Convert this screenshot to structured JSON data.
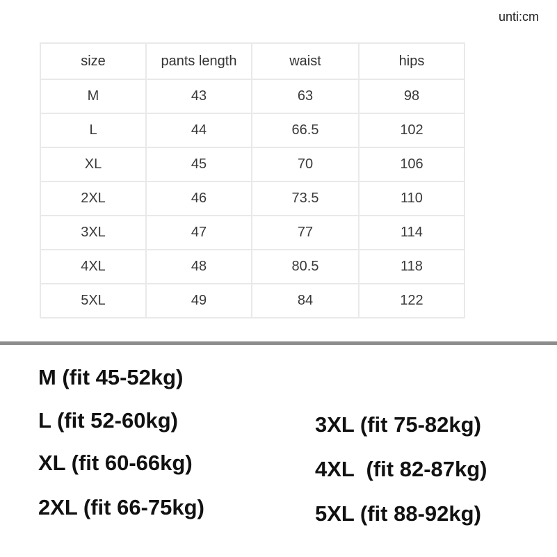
{
  "unit_label": "unti:cm",
  "table": {
    "headers": [
      "size",
      "pants length",
      "waist",
      "hips"
    ],
    "rows": [
      [
        "M",
        "43",
        "63",
        "98"
      ],
      [
        "L",
        "44",
        "66.5",
        "102"
      ],
      [
        "XL",
        "45",
        "70",
        "106"
      ],
      [
        "2XL",
        "46",
        "73.5",
        "110"
      ],
      [
        "3XL",
        "47",
        "77",
        "114"
      ],
      [
        "4XL",
        "48",
        "80.5",
        "118"
      ],
      [
        "5XL",
        "49",
        "84",
        "122"
      ]
    ]
  },
  "fit_left": [
    "M (fit 45-52kg)",
    "L (fit 52-60kg)",
    "XL (fit 60-66kg)",
    "2XL (fit 66-75kg)"
  ],
  "fit_right": [
    "3XL (fit 75-82kg)",
    "4XL  (fit 82-87kg)",
    "5XL (fit 88-92kg)"
  ]
}
